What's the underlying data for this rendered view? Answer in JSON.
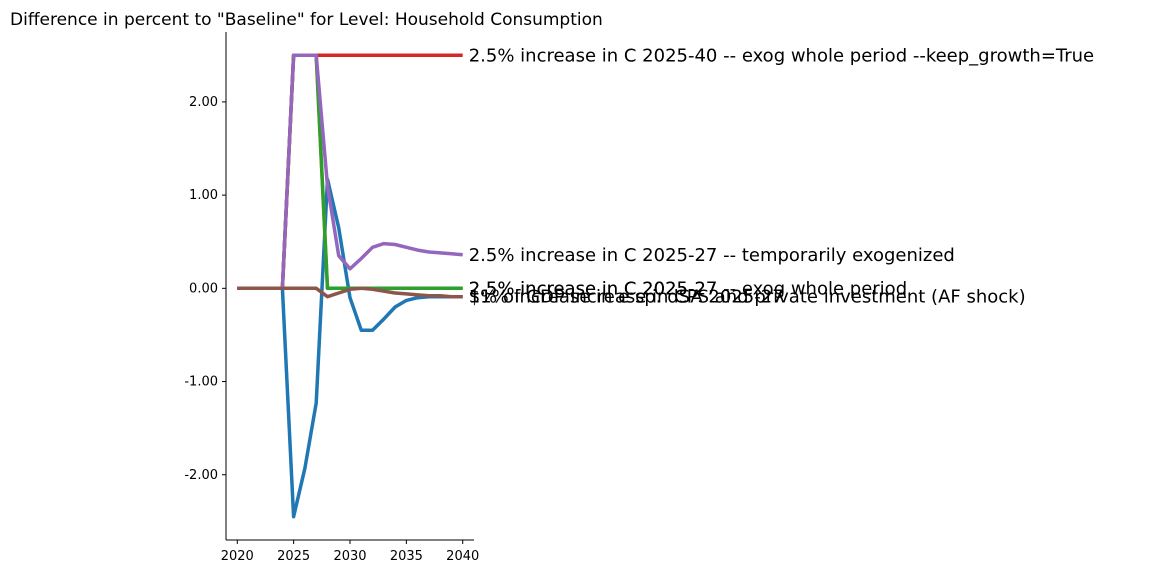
{
  "chart_data": {
    "type": "line",
    "title": "Difference in percent to \"Baseline\" for Level: Household Consumption",
    "xlabel": "",
    "ylabel": "",
    "xlim": [
      2019,
      2041
    ],
    "ylim": [
      -2.7,
      2.75
    ],
    "x_ticks": [
      2020,
      2025,
      2030,
      2035,
      2040
    ],
    "y_ticks": [
      -2.0,
      -1.0,
      0.0,
      1.0,
      2.0
    ],
    "y_tick_labels": [
      "-2.00",
      "-1.00",
      "0.00",
      "1.00",
      "2.00"
    ],
    "grid": false,
    "series": [
      {
        "label": "1% of GDP increase in CPS and private investment (AF shock)",
        "color": "#1f77b4",
        "x": [
          2020,
          2021,
          2022,
          2023,
          2024,
          2025,
          2026,
          2027,
          2028,
          2029,
          2030,
          2031,
          2032,
          2033,
          2034,
          2035,
          2036,
          2037,
          2038,
          2039,
          2040
        ],
        "y": [
          0.0,
          0.0,
          0.0,
          0.0,
          0.0,
          -2.45,
          -1.93,
          -1.23,
          1.17,
          0.65,
          -0.1,
          -0.45,
          -0.45,
          -0.33,
          -0.2,
          -0.13,
          -0.1,
          -0.09,
          -0.09,
          -0.09,
          -0.09
        ]
      },
      {
        "label": "2.5% increase in C 2025-27",
        "color": "#ff7f0e",
        "x": [
          2020,
          2021,
          2022,
          2023,
          2024,
          2025,
          2026,
          2027,
          2028,
          2029,
          2030,
          2031,
          2032,
          2033,
          2034,
          2035,
          2036,
          2037,
          2038,
          2039,
          2040
        ],
        "y": [
          0.0,
          0.0,
          0.0,
          0.0,
          0.0,
          2.5,
          2.5,
          2.5,
          0.0,
          0.0,
          0.0,
          0.0,
          0.0,
          0.0,
          0.0,
          0.0,
          0.0,
          0.0,
          0.0,
          0.0,
          0.0
        ]
      },
      {
        "label": "2.5% increase in C 2025-27 -- exog whole period",
        "color": "#2ca02c",
        "x": [
          2020,
          2021,
          2022,
          2023,
          2024,
          2025,
          2026,
          2027,
          2028,
          2029,
          2030,
          2031,
          2032,
          2033,
          2034,
          2035,
          2036,
          2037,
          2038,
          2039,
          2040
        ],
        "y": [
          0.0,
          0.0,
          0.0,
          0.0,
          0.0,
          2.5,
          2.5,
          2.5,
          0.0,
          0.0,
          0.0,
          0.0,
          0.0,
          0.0,
          0.0,
          0.0,
          0.0,
          0.0,
          0.0,
          0.0,
          0.0
        ]
      },
      {
        "label": "2.5% increase in C 2025-40 -- exog whole period --keep_growth=True",
        "color": "#d62728",
        "x": [
          2020,
          2021,
          2022,
          2023,
          2024,
          2025,
          2026,
          2027,
          2028,
          2029,
          2030,
          2031,
          2032,
          2033,
          2034,
          2035,
          2036,
          2037,
          2038,
          2039,
          2040
        ],
        "y": [
          0.0,
          0.0,
          0.0,
          0.0,
          0.0,
          2.5,
          2.5,
          2.5,
          2.5,
          2.5,
          2.5,
          2.5,
          2.5,
          2.5,
          2.5,
          2.5,
          2.5,
          2.5,
          2.5,
          2.5,
          2.5
        ]
      },
      {
        "label": "2.5% increase in C 2025-27 -- temporarily exogenized",
        "color": "#9467bd",
        "x": [
          2020,
          2021,
          2022,
          2023,
          2024,
          2025,
          2026,
          2027,
          2028,
          2029,
          2030,
          2031,
          2032,
          2033,
          2034,
          2035,
          2036,
          2037,
          2038,
          2039,
          2040
        ],
        "y": [
          0.0,
          0.0,
          0.0,
          0.0,
          0.0,
          2.5,
          2.5,
          2.5,
          1.1,
          0.35,
          0.21,
          0.32,
          0.44,
          0.48,
          0.47,
          0.44,
          0.41,
          0.39,
          0.38,
          0.37,
          0.36
        ]
      },
      {
        "label": "$1% increase in e sp. dSA 2025-27",
        "color": "#8c564b",
        "x": [
          2020,
          2021,
          2022,
          2023,
          2024,
          2025,
          2026,
          2027,
          2028,
          2029,
          2030,
          2031,
          2032,
          2033,
          2034,
          2035,
          2036,
          2037,
          2038,
          2039,
          2040
        ],
        "y": [
          0.0,
          0.0,
          0.0,
          0.0,
          0.0,
          0.0,
          0.0,
          0.0,
          -0.09,
          -0.05,
          -0.01,
          0.0,
          -0.01,
          -0.03,
          -0.05,
          -0.06,
          -0.07,
          -0.08,
          -0.08,
          -0.09,
          -0.09
        ]
      }
    ]
  }
}
